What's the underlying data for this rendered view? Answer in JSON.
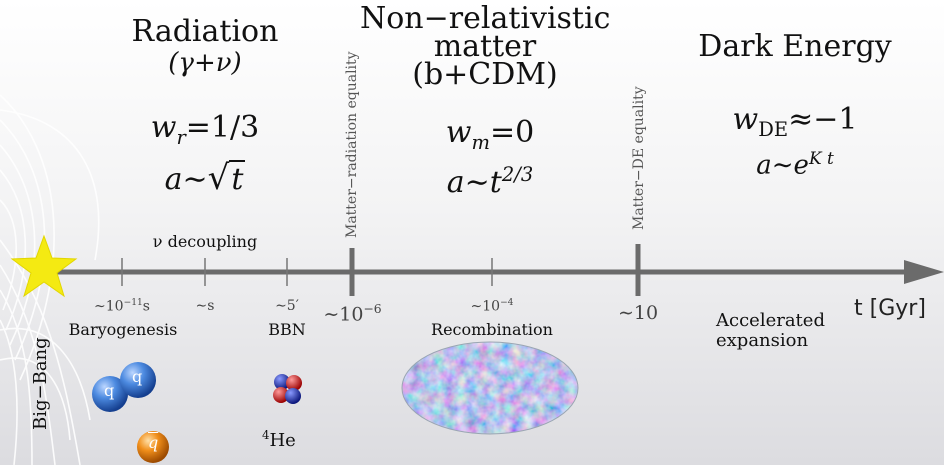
{
  "eras": {
    "radiation": {
      "title": "Radiation",
      "subtitle": "(γ+ν)",
      "eos_sym": "w",
      "eos_sub": "r",
      "eos_val": "=1/3",
      "scale_lhs": "a∼",
      "scale_rhs": "t"
    },
    "matter": {
      "title_line1": "Non−relativistic",
      "title_line2": "matter",
      "title_line3": "(b+CDM)",
      "eos_sym": "w",
      "eos_sub": "m",
      "eos_val": "=0",
      "scale_lhs": "a∼t",
      "scale_exp": "2/3"
    },
    "dark_energy": {
      "title": "Dark Energy",
      "eos_sym": "w",
      "eos_sub": "DE",
      "eos_val": "≈−1",
      "scale_lhs": "a∼e",
      "scale_exp": "K t"
    }
  },
  "equalities": {
    "matter_radiation": "Matter−radiation equality",
    "matter_de": "Matter−DE equality"
  },
  "timeline": {
    "axis_unit": "t [Gyr]",
    "big_bang": "Big−Bang",
    "nu_decoupling": "ν decoupling",
    "ticks": {
      "t1_base": "∼10",
      "t1_exp": "−11",
      "t1_unit": "s",
      "t2": "∼s",
      "t3": "∼5′",
      "t4_base": "∼10",
      "t4_exp": "−6",
      "t5_base": "∼10",
      "t5_exp": "−4",
      "t6": "∼10"
    },
    "events": {
      "baryogenesis": "Baryogenesis",
      "bbn": "BBN",
      "recombination": "Recombination",
      "accelerated_line1": "Accelerated",
      "accelerated_line2": "expansion"
    }
  },
  "particles": {
    "quark": "q",
    "antiquark": "q",
    "helium_mass": "4",
    "helium_symbol": "He"
  },
  "colors": {
    "axis": "#6b6b6b",
    "star": "#f4ea12",
    "quark_blue": "#2f6fd0",
    "antiquark_orange": "#e27d10",
    "proton_red": "#d21818",
    "neutron_blue": "#1f2fb8"
  }
}
